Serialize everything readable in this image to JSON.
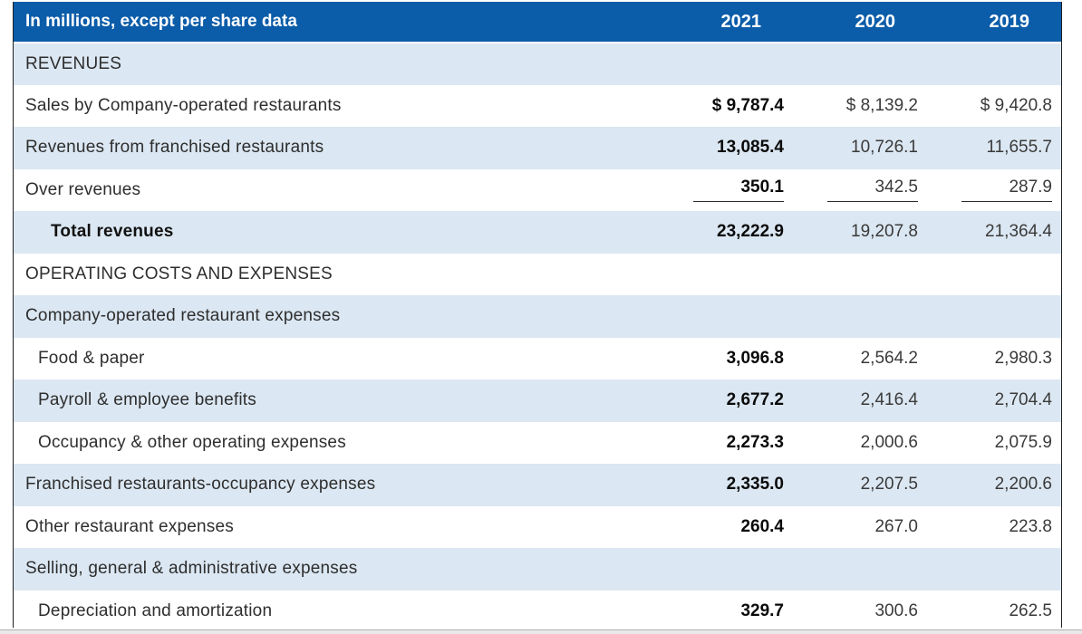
{
  "table": {
    "title_cell": "In millions, except per share data",
    "year_columns": [
      "2021",
      "2020",
      "2019"
    ],
    "colors": {
      "header_bg": "#0b5ca9",
      "header_text": "#ffffff",
      "alt_row_bg": "#dbe7f2",
      "plain_row_bg": "#ffffff",
      "bold_column_text": "#0a0a0a"
    },
    "rows": [
      {
        "label": "REVENUES",
        "indent": 0,
        "values": [
          "",
          "",
          ""
        ]
      },
      {
        "label": "Sales by Company-operated restaurants",
        "indent": 0,
        "values": [
          "$ 9,787.4",
          "$ 8,139.2",
          "$ 9,420.8"
        ]
      },
      {
        "label": "Revenues from franchised restaurants",
        "indent": 0,
        "values": [
          "13,085.4",
          "10,726.1",
          "11,655.7"
        ]
      },
      {
        "label": "Over revenues",
        "indent": 0,
        "underline": true,
        "values": [
          "350.1",
          "342.5",
          "287.9"
        ]
      },
      {
        "label": "Total revenues",
        "indent": 2,
        "bold_label": true,
        "values": [
          "23,222.9",
          "19,207.8",
          "21,364.4"
        ]
      },
      {
        "label": "OPERATING COSTS AND EXPENSES",
        "indent": 0,
        "values": [
          "",
          "",
          ""
        ]
      },
      {
        "label": "Company-operated restaurant expenses",
        "indent": 0,
        "values": [
          "",
          "",
          ""
        ]
      },
      {
        "label": "Food & paper",
        "indent": 1,
        "values": [
          "3,096.8",
          "2,564.2",
          "2,980.3"
        ]
      },
      {
        "label": "Payroll & employee benefits",
        "indent": 1,
        "values": [
          "2,677.2",
          "2,416.4",
          "2,704.4"
        ]
      },
      {
        "label": "Occupancy & other operating expenses",
        "indent": 1,
        "values": [
          "2,273.3",
          "2,000.6",
          "2,075.9"
        ]
      },
      {
        "label": "Franchised restaurants-occupancy expenses",
        "indent": 0,
        "values": [
          "2,335.0",
          "2,207.5",
          "2,200.6"
        ]
      },
      {
        "label": "Other restaurant expenses",
        "indent": 0,
        "values": [
          "260.4",
          "267.0",
          "223.8"
        ]
      },
      {
        "label": "Selling, general & administrative expenses",
        "indent": 0,
        "values": [
          "",
          "",
          ""
        ]
      },
      {
        "label": "Depreciation and amortization",
        "indent": 1,
        "values": [
          "329.7",
          "300.6",
          "262.5"
        ]
      }
    ]
  }
}
